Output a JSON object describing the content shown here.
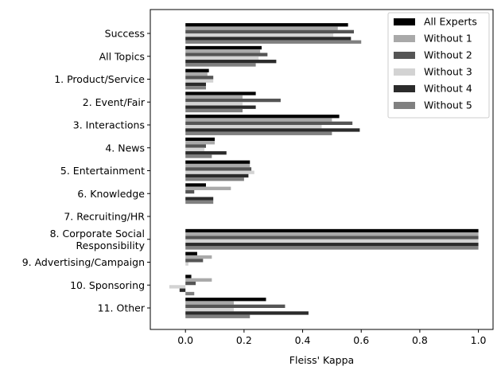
{
  "chart_data": {
    "type": "bar",
    "orientation": "horizontal",
    "title": "",
    "xlabel": "Fleiss' Kappa",
    "ylabel": "",
    "xlim": [
      -0.12,
      1.05
    ],
    "xticks": [
      "0.0",
      "0.2",
      "0.4",
      "0.6",
      "0.8",
      "1.0"
    ],
    "grid": false,
    "legend_position": "top-right",
    "categories": [
      "Success",
      "All Topics",
      "1. Product/Service",
      "2. Event/Fair",
      "3. Interactions",
      "4. News",
      "5. Entertainment",
      "6. Knowledge",
      "7. Recruiting/HR",
      "8. Corporate Social\nResponsibility",
      "9. Advertising/Campaign",
      "10. Sponsoring",
      "11. Other"
    ],
    "series": [
      {
        "name": "All Experts",
        "color": "#000000",
        "values": [
          0.555,
          0.26,
          0.08,
          0.24,
          0.525,
          0.1,
          0.22,
          0.07,
          0.0,
          1.0,
          0.04,
          0.02,
          0.275
        ]
      },
      {
        "name": "Without 1",
        "color": "#a9a9a9",
        "values": [
          0.52,
          0.255,
          0.075,
          0.195,
          0.5,
          0.1,
          0.22,
          0.155,
          0.0,
          1.0,
          0.09,
          0.09,
          0.165
        ]
      },
      {
        "name": "Without 2",
        "color": "#555555",
        "values": [
          0.575,
          0.28,
          0.095,
          0.325,
          0.57,
          0.07,
          0.225,
          0.03,
          0.0,
          1.0,
          0.06,
          0.035,
          0.34
        ]
      },
      {
        "name": "Without 3",
        "color": "#d3d3d3",
        "values": [
          0.505,
          0.25,
          0.095,
          0.195,
          0.465,
          0.065,
          0.235,
          0.0,
          0.0,
          1.0,
          0.01,
          -0.055,
          0.165
        ]
      },
      {
        "name": "Without 4",
        "color": "#2b2b2b",
        "values": [
          0.565,
          0.31,
          0.07,
          0.24,
          0.595,
          0.14,
          0.215,
          0.095,
          0.0,
          1.0,
          0.0,
          -0.02,
          0.42
        ]
      },
      {
        "name": "Without 5",
        "color": "#808080",
        "values": [
          0.6,
          0.24,
          0.07,
          0.195,
          0.5,
          0.09,
          0.2,
          0.095,
          0.0,
          1.0,
          0.0,
          0.03,
          0.22
        ]
      }
    ]
  }
}
